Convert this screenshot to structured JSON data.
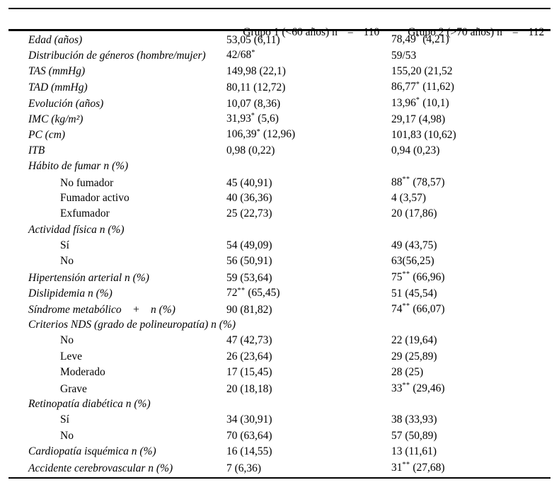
{
  "table": {
    "header": {
      "group1": {
        "name": "Grupo 1 (<60 años) n",
        "eq": "=",
        "n": "110"
      },
      "group2": {
        "name": "Grupo 2 (>70 años) n",
        "eq": "=",
        "n": "112"
      }
    },
    "significance_markers": {
      "single": "*",
      "double": "**"
    },
    "rows": [
      {
        "label": "Edad (años)",
        "italic": true,
        "indent": false,
        "g1": [
          "53,05 (6,11)",
          "",
          ""
        ],
        "g2": [
          "78,49",
          "*",
          " (4,21)"
        ]
      },
      {
        "label": "Distribución de géneros (hombre/mujer)",
        "italic": true,
        "indent": false,
        "g1": [
          "42/68",
          "*",
          ""
        ],
        "g2": [
          "59/53",
          "",
          ""
        ]
      },
      {
        "label": "TAS (mmHg)",
        "italic": true,
        "indent": false,
        "g1": [
          "149,98 (22,1)",
          "",
          ""
        ],
        "g2": [
          "155,20 (21,52",
          "",
          ""
        ]
      },
      {
        "label": "TAD (mmHg)",
        "italic": true,
        "indent": false,
        "g1": [
          "80,11 (12,72)",
          "",
          ""
        ],
        "g2": [
          "86,77",
          "*",
          " (11,62)"
        ]
      },
      {
        "label": "Evolución (años)",
        "italic": true,
        "indent": false,
        "g1": [
          "10,07 (8,36)",
          "",
          ""
        ],
        "g2": [
          "13,96",
          "*",
          " (10,1)"
        ]
      },
      {
        "label": "IMC (kg/m²)",
        "italic": true,
        "indent": false,
        "g1": [
          "31,93",
          "*",
          " (5,6)"
        ],
        "g2": [
          "29,17 (4,98)",
          "",
          ""
        ]
      },
      {
        "label": "PC (cm)",
        "italic": true,
        "indent": false,
        "g1": [
          "106,39",
          "*",
          " (12,96)"
        ],
        "g2": [
          "101,83 (10,62)",
          "",
          ""
        ]
      },
      {
        "label": "ITB",
        "italic": true,
        "indent": false,
        "g1": [
          "0,98 (0,22)",
          "",
          ""
        ],
        "g2": [
          "0,94 (0,23)",
          "",
          ""
        ]
      },
      {
        "label": "Hábito de fumar n (%)",
        "italic": true,
        "indent": false,
        "g1": null,
        "g2": null
      },
      {
        "label": "No fumador",
        "italic": false,
        "indent": true,
        "g1": [
          "45 (40,91)",
          "",
          ""
        ],
        "g2": [
          "88",
          "**",
          " (78,57)"
        ]
      },
      {
        "label": "Fumador activo",
        "italic": false,
        "indent": true,
        "g1": [
          "40 (36,36)",
          "",
          ""
        ],
        "g2": [
          "4 (3,57)",
          "",
          ""
        ]
      },
      {
        "label": "Exfumador",
        "italic": false,
        "indent": true,
        "g1": [
          "25 (22,73)",
          "",
          ""
        ],
        "g2": [
          "20 (17,86)",
          "",
          ""
        ]
      },
      {
        "label": "Actividad física n (%)",
        "italic": true,
        "indent": false,
        "g1": null,
        "g2": null
      },
      {
        "label": "Sí",
        "italic": false,
        "indent": true,
        "g1": [
          "54 (49,09)",
          "",
          ""
        ],
        "g2": [
          "49 (43,75)",
          "",
          ""
        ]
      },
      {
        "label": "No",
        "italic": false,
        "indent": true,
        "g1": [
          "56 (50,91)",
          "",
          ""
        ],
        "g2": [
          "63(56,25)",
          "",
          ""
        ]
      },
      {
        "label": "Hipertensión arterial n (%)",
        "italic": true,
        "indent": false,
        "g1": [
          "59 (53,64)",
          "",
          ""
        ],
        "g2": [
          "75",
          "**",
          " (66,96)"
        ]
      },
      {
        "label": "Dislipidemia n (%)",
        "italic": true,
        "indent": false,
        "g1": [
          "72",
          "**",
          " (65,45)"
        ],
        "g2": [
          "51 (45,54)",
          "",
          ""
        ]
      },
      {
        "label": "Síndrome metabólico    +    n (%)",
        "italic": true,
        "indent": false,
        "g1": [
          "90 (81,82)",
          "",
          ""
        ],
        "g2": [
          "74",
          "**",
          " (66,07)"
        ]
      },
      {
        "label": "Criterios NDS (grado de polineuropatía) n (%)",
        "italic": true,
        "indent": false,
        "g1": null,
        "g2": null
      },
      {
        "label": "No",
        "italic": false,
        "indent": true,
        "g1": [
          "47 (42,73)",
          "",
          ""
        ],
        "g2": [
          "22 (19,64)",
          "",
          ""
        ]
      },
      {
        "label": "Leve",
        "italic": false,
        "indent": true,
        "g1": [
          "26 (23,64)",
          "",
          ""
        ],
        "g2": [
          "29 (25,89)",
          "",
          ""
        ]
      },
      {
        "label": "Moderado",
        "italic": false,
        "indent": true,
        "g1": [
          "17 (15,45)",
          "",
          ""
        ],
        "g2": [
          "28 (25)",
          "",
          ""
        ]
      },
      {
        "label": "Grave",
        "italic": false,
        "indent": true,
        "g1": [
          "20 (18,18)",
          "",
          ""
        ],
        "g2": [
          "33",
          "**",
          " (29,46)"
        ]
      },
      {
        "label": "Retinopatía diabética n (%)",
        "italic": true,
        "indent": false,
        "g1": null,
        "g2": null
      },
      {
        "label": "Sí",
        "italic": false,
        "indent": true,
        "g1": [
          "34 (30,91)",
          "",
          ""
        ],
        "g2": [
          "38 (33,93)",
          "",
          ""
        ]
      },
      {
        "label": "No",
        "italic": false,
        "indent": true,
        "g1": [
          "70 (63,64)",
          "",
          ""
        ],
        "g2": [
          "57 (50,89)",
          "",
          ""
        ]
      },
      {
        "label": "Cardiopatía isquémica n (%)",
        "italic": true,
        "indent": false,
        "g1": [
          "16 (14,55)",
          "",
          ""
        ],
        "g2": [
          "13 (11,61)",
          "",
          ""
        ]
      },
      {
        "label": "Accidente cerebrovascular n (%)",
        "italic": true,
        "indent": false,
        "g1": [
          "7 (6,36)",
          "",
          ""
        ],
        "g2": [
          "31",
          "**",
          " (27,68)"
        ]
      }
    ]
  }
}
